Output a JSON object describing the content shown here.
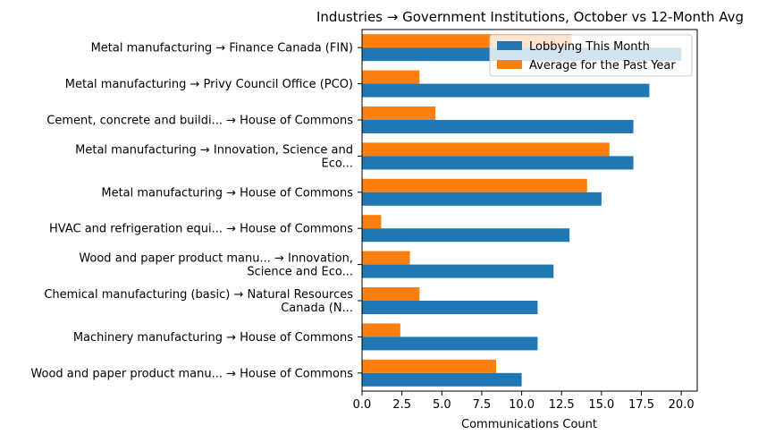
{
  "chart_data": {
    "type": "bar",
    "orientation": "horizontal",
    "title": "Industries → Government Institutions, October vs 12-Month Avg",
    "xlabel": "Communications Count",
    "ylabel": "",
    "xlim": [
      0,
      21
    ],
    "xticks": [
      0.0,
      2.5,
      5.0,
      7.5,
      10.0,
      12.5,
      15.0,
      17.5,
      20.0
    ],
    "xtick_labels": [
      "0.0",
      "2.5",
      "5.0",
      "7.5",
      "10.0",
      "12.5",
      "15.0",
      "17.5",
      "20.0"
    ],
    "grid": false,
    "legend_position": "top-right",
    "categories": [
      [
        "Metal manufacturing → Finance Canada (FIN)"
      ],
      [
        "Metal manufacturing → Privy Council Office (PCO)"
      ],
      [
        "Cement, concrete and buildi... → House of Commons"
      ],
      [
        "Metal manufacturing → Innovation, Science and",
        "Eco..."
      ],
      [
        "Metal manufacturing → House of Commons"
      ],
      [
        "HVAC and refrigeration equi... → House of Commons"
      ],
      [
        "Wood and paper product manu... → Innovation,",
        "Science and Eco..."
      ],
      [
        "Chemical manufacturing (basic) → Natural Resources",
        "Canada (N..."
      ],
      [
        "Machinery manufacturing → House of Commons"
      ],
      [
        "Wood and paper product manu... → House of Commons"
      ]
    ],
    "series": [
      {
        "name": "Lobbying This Month",
        "color": "#1f77b4",
        "values": [
          20,
          18,
          17,
          17,
          15,
          13,
          12,
          11,
          11,
          10
        ]
      },
      {
        "name": "Average for the Past Year",
        "color": "#ff7f0e",
        "values": [
          13.1,
          3.6,
          4.6,
          15.5,
          14.1,
          1.2,
          3.0,
          3.6,
          2.4,
          8.4
        ]
      }
    ]
  }
}
